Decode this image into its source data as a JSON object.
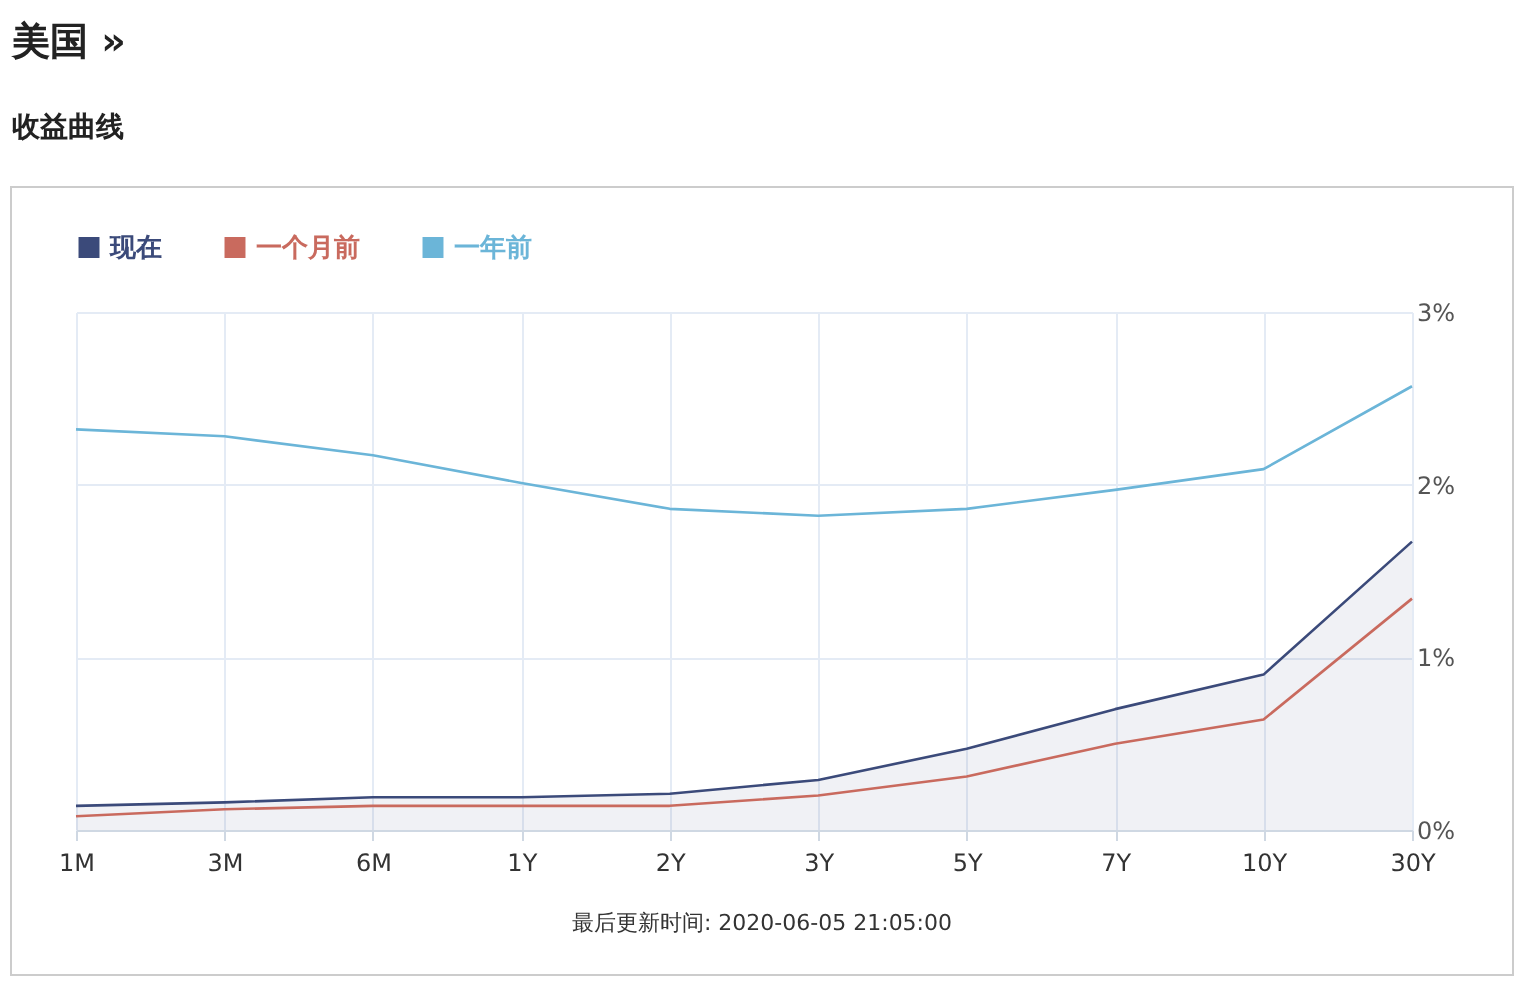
{
  "chart_data": {
    "type": "line",
    "title": "美国 »",
    "subtitle": "收益曲线",
    "categories": [
      "1M",
      "3M",
      "6M",
      "1Y",
      "2Y",
      "3Y",
      "5Y",
      "7Y",
      "10Y",
      "30Y"
    ],
    "series": [
      {
        "name": "现在",
        "type": "area",
        "color": "#3b4a7a",
        "values": [
          0.14,
          0.16,
          0.19,
          0.19,
          0.21,
          0.29,
          0.47,
          0.7,
          0.9,
          1.67
        ]
      },
      {
        "name": "一个月前",
        "color": "#c96a5e",
        "values": [
          0.08,
          0.12,
          0.14,
          0.14,
          0.14,
          0.2,
          0.31,
          0.5,
          0.64,
          1.34
        ]
      },
      {
        "name": "一年前",
        "color": "#6bb5d8",
        "values": [
          2.32,
          2.28,
          2.17,
          2.01,
          1.86,
          1.82,
          1.86,
          1.97,
          2.09,
          2.57
        ]
      }
    ],
    "ylim": [
      0,
      3
    ],
    "yticks": [
      {
        "value": 0,
        "label": "0%"
      },
      {
        "value": 1,
        "label": "1%"
      },
      {
        "value": 2,
        "label": "2%"
      },
      {
        "value": 3,
        "label": "3%"
      }
    ],
    "grid": true,
    "legend": "top left",
    "marker": "none",
    "line_style": "solid",
    "annotations": [
      "最后更新时间: 2020-06-05 21:05:00"
    ]
  }
}
